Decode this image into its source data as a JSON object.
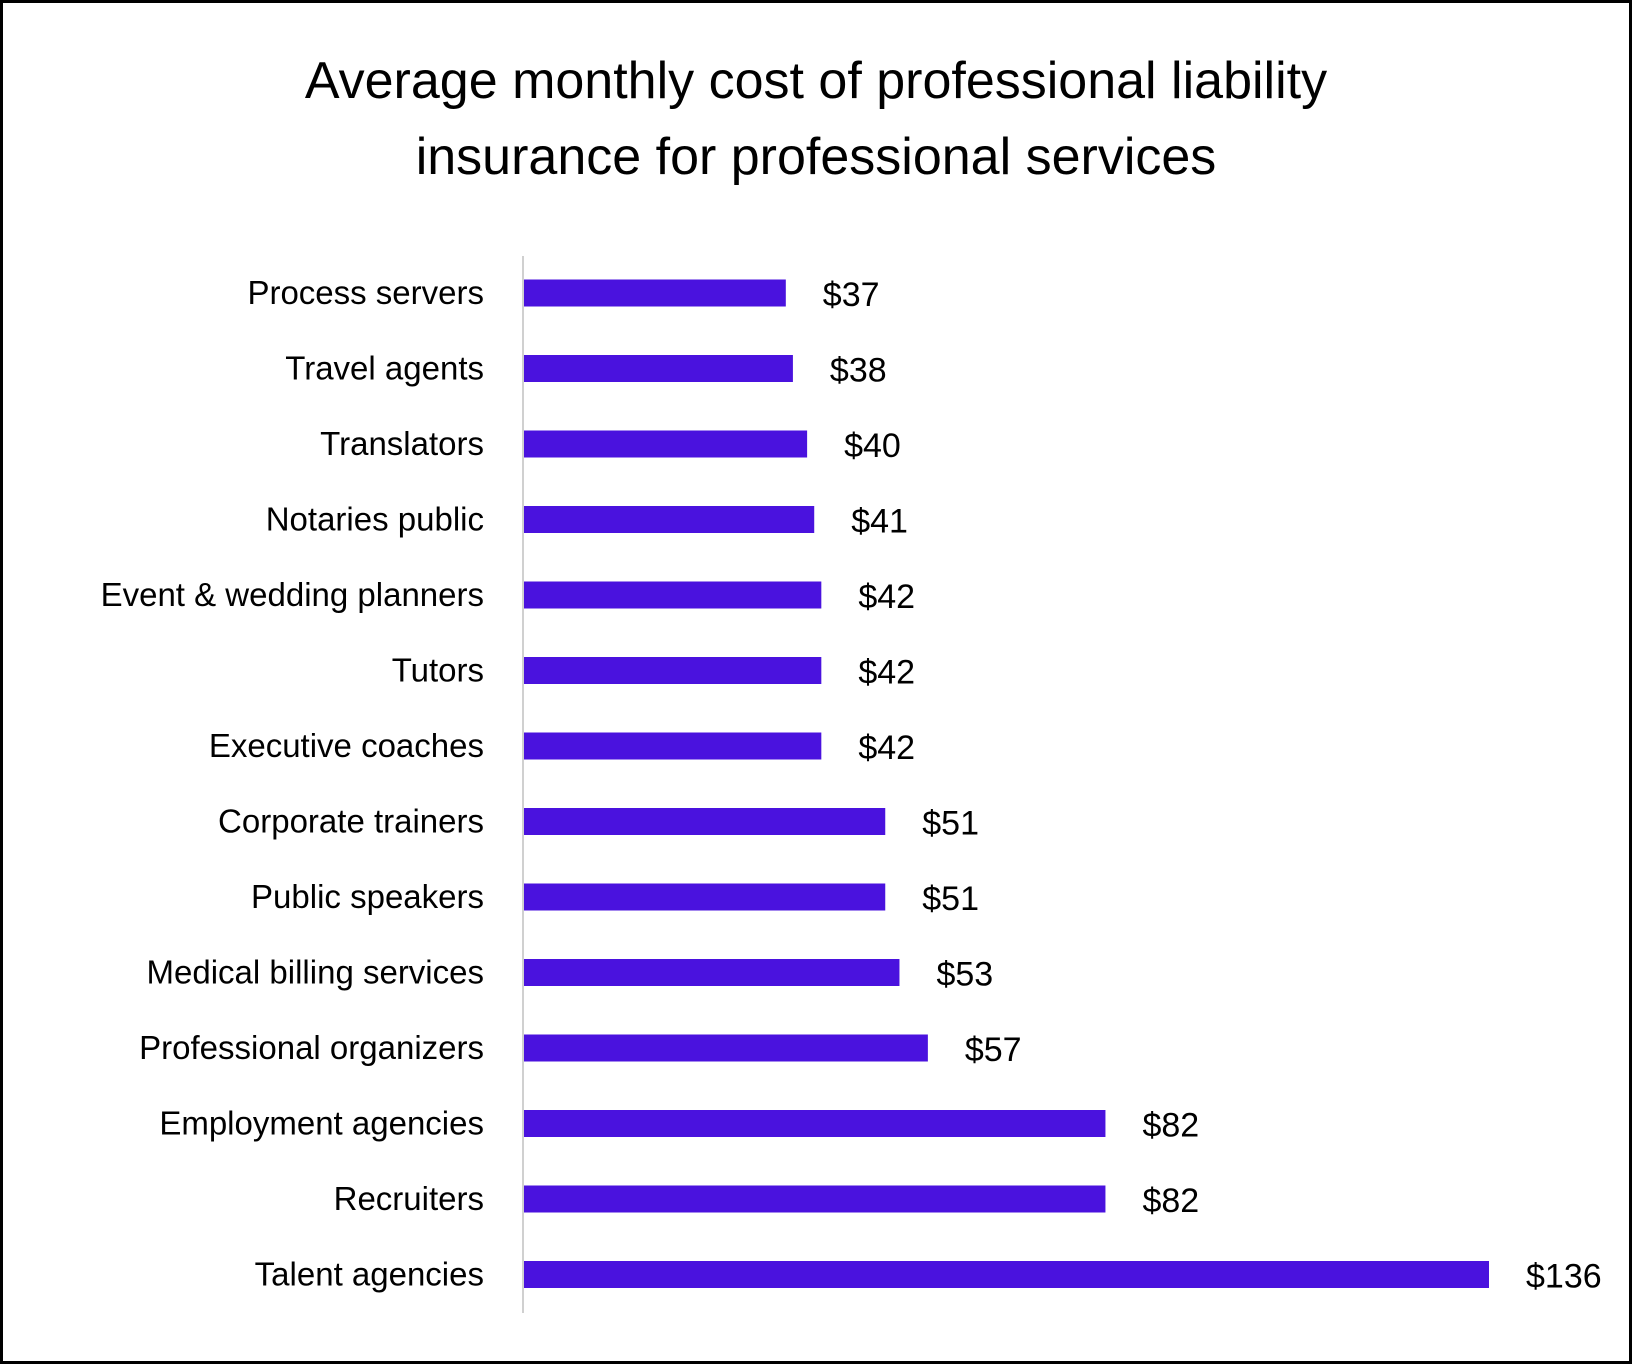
{
  "chart_data": {
    "type": "bar",
    "orientation": "horizontal",
    "title": "Average monthly cost of professional liability insurance for professional services",
    "title_lines": [
      "Average monthly cost of professional liability",
      "insurance for professional services"
    ],
    "categories": [
      "Process servers",
      "Travel agents",
      "Translators",
      "Notaries public",
      "Event & wedding planners",
      "Tutors",
      "Executive coaches",
      "Corporate trainers",
      "Public speakers",
      "Medical billing services",
      "Professional organizers",
      "Employment agencies",
      "Recruiters",
      "Talent agencies"
    ],
    "values": [
      37,
      38,
      40,
      41,
      42,
      42,
      42,
      51,
      51,
      53,
      57,
      82,
      82,
      136
    ],
    "data_labels": [
      "$37",
      "$38",
      "$40",
      "$41",
      "$42",
      "$42",
      "$42",
      "$51",
      "$51",
      "$53",
      "$57",
      "$82",
      "$82",
      "$136"
    ],
    "xlabel": "",
    "ylabel": "",
    "xlim": [
      0,
      136
    ],
    "grid": false,
    "legend": "none",
    "bar_color": "#4A12DE"
  }
}
